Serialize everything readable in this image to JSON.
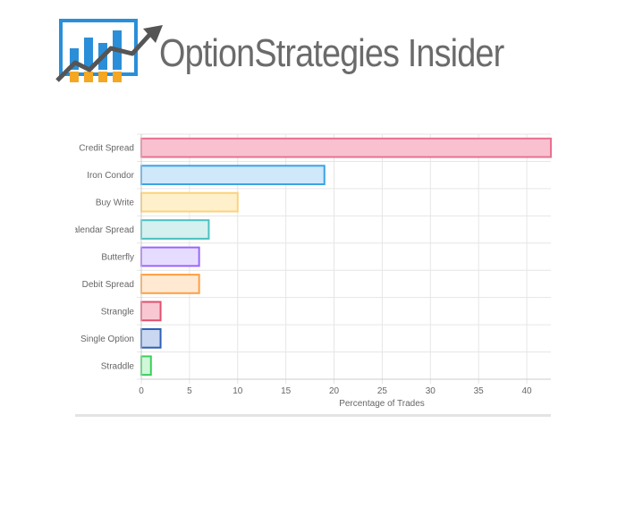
{
  "brand": {
    "name_part1": "Option",
    "name_part2": "Strategies",
    "name_part3": "Insider",
    "colors": {
      "text": "#6b6b6b",
      "box": "#2a8fd8",
      "bars_blue": "#2a8fd8",
      "bars_orange": "#f5a623",
      "arrow": "#555555"
    }
  },
  "chart_data": {
    "type": "bar",
    "orientation": "horizontal",
    "categories": [
      "Credit Spread",
      "Iron Condor",
      "Buy Write",
      "Calendar Spread",
      "Butterfly",
      "Debit Spread",
      "Strangle",
      "Single Option",
      "Straddle"
    ],
    "values": [
      43,
      19,
      10,
      7,
      6,
      6,
      2,
      2,
      1
    ],
    "xlabel": "Percentage of Trades",
    "ylabel": "",
    "xlim": [
      0,
      42.5
    ],
    "xticks": [
      "0",
      "5",
      "10",
      "15",
      "20",
      "25",
      "30",
      "35",
      "40"
    ],
    "grid": true,
    "bar_colors": [
      {
        "fill": "#f9c0cf",
        "stroke": "#e8718f"
      },
      {
        "fill": "#cfe8fa",
        "stroke": "#3ba2e6"
      },
      {
        "fill": "#fff0cc",
        "stroke": "#fdd27a"
      },
      {
        "fill": "#d4f1ef",
        "stroke": "#4bc0c0"
      },
      {
        "fill": "#e6dcff",
        "stroke": "#9966ff"
      },
      {
        "fill": "#ffe9d3",
        "stroke": "#ff9f40"
      },
      {
        "fill": "#f9c7d2",
        "stroke": "#e0506f"
      },
      {
        "fill": "#c9d8f0",
        "stroke": "#2f5fb5"
      },
      {
        "fill": "#cff7d8",
        "stroke": "#39d05a"
      }
    ]
  }
}
